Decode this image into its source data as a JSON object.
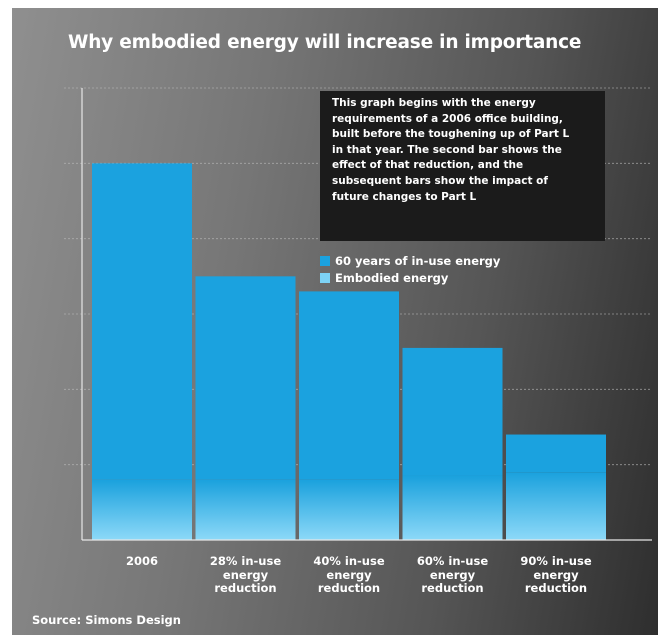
{
  "chart_data": {
    "type": "bar",
    "stacked": true,
    "title": "Why embodied energy will increase in importance",
    "categories": [
      [
        "2006"
      ],
      [
        "28% in-use",
        "energy",
        "reduction"
      ],
      [
        "40% in-use",
        "energy",
        "reduction"
      ],
      [
        "60% in-use",
        "energy",
        "reduction"
      ],
      [
        "90% in-use",
        "energy",
        "reduction"
      ]
    ],
    "series": [
      {
        "name": "60 years of in-use energy",
        "color": "#1ba2df",
        "values": [
          4.2,
          2.7,
          2.5,
          1.7,
          0.5
        ]
      },
      {
        "name": "Embodied energy",
        "color": "#7dd3f6",
        "values": [
          0.8,
          0.8,
          0.8,
          0.85,
          0.9
        ]
      }
    ],
    "xlabel": "",
    "ylabel": "",
    "y_tick_labels": "none",
    "ylim": [
      0,
      6
    ],
    "grid": true,
    "legend_position": "right, below annotation",
    "annotation": [
      "This graph begins with the energy",
      "requirements of a 2006 office building,",
      "built before the toughening up of Part L",
      "in that year. The second bar shows the",
      "effect of that reduction, and the",
      "subsequent bars show the impact of",
      "future changes to Part L"
    ],
    "source": "Source: Simons Design"
  }
}
